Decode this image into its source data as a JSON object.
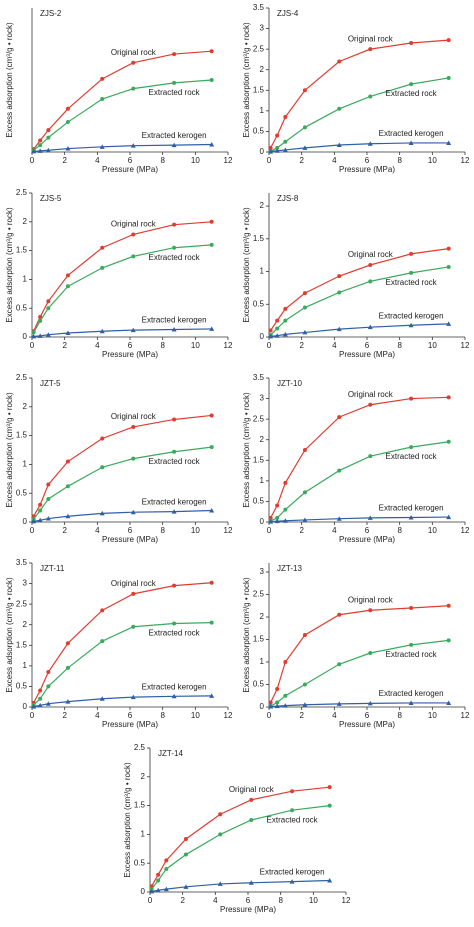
{
  "chart_data": [
    {
      "type": "line",
      "title": "ZJS-2",
      "xlabel": "Pressure (MPa)",
      "ylabel": "Excess adsorption (cm³/g • rock)",
      "x": [
        0.1,
        0.5,
        1,
        2.2,
        4.3,
        6.2,
        8.7,
        11
      ],
      "xlim": [
        0,
        12
      ],
      "xticks": [
        0,
        2,
        4,
        6,
        8,
        10,
        12
      ],
      "ylim": [
        0,
        2.5
      ],
      "yticks": [],
      "series": [
        {
          "name": "Original rock",
          "color": "#e03c31",
          "values": [
            0.05,
            0.2,
            0.38,
            0.75,
            1.27,
            1.55,
            1.7,
            1.75
          ]
        },
        {
          "name": "Extracted rock",
          "color": "#3aaa5c",
          "values": [
            0.03,
            0.12,
            0.25,
            0.52,
            0.92,
            1.1,
            1.2,
            1.25
          ]
        },
        {
          "name": "Extracted kerogen",
          "color": "#2f5fa8",
          "values": [
            0.01,
            0.02,
            0.03,
            0.06,
            0.09,
            0.11,
            0.12,
            0.13
          ]
        }
      ]
    },
    {
      "type": "line",
      "title": "ZJS-4",
      "xlabel": "Pressure (MPa)",
      "ylabel": "Excess adsorption (cm³/g • rock)",
      "x": [
        0.1,
        0.5,
        1,
        2.2,
        4.3,
        6.2,
        8.7,
        11
      ],
      "xlim": [
        0,
        12
      ],
      "xticks": [
        0,
        2,
        4,
        6,
        8,
        10,
        12
      ],
      "ylim": [
        0,
        3.5
      ],
      "yticks": [
        0,
        0.5,
        1.0,
        1.5,
        2.0,
        2.5,
        3.0,
        3.5
      ],
      "series": [
        {
          "name": "Original rock",
          "color": "#e03c31",
          "values": [
            0.1,
            0.4,
            0.85,
            1.5,
            2.2,
            2.5,
            2.65,
            2.72
          ]
        },
        {
          "name": "Extracted rock",
          "color": "#3aaa5c",
          "values": [
            0.02,
            0.1,
            0.25,
            0.6,
            1.05,
            1.35,
            1.65,
            1.8
          ]
        },
        {
          "name": "Extracted kerogen",
          "color": "#2f5fa8",
          "values": [
            0.01,
            0.03,
            0.05,
            0.1,
            0.17,
            0.2,
            0.22,
            0.22
          ]
        }
      ]
    },
    {
      "type": "line",
      "title": "ZJS-5",
      "xlabel": "Pressure (MPa)",
      "ylabel": "Excess adsorption (cm³/g • rock)",
      "x": [
        0.1,
        0.5,
        1,
        2.2,
        4.3,
        6.2,
        8.7,
        11
      ],
      "xlim": [
        0,
        12
      ],
      "xticks": [
        0,
        2,
        4,
        6,
        8,
        10,
        12
      ],
      "ylim": [
        0,
        2.5
      ],
      "yticks": [
        0,
        0.5,
        1.0,
        1.5,
        2.0,
        2.5
      ],
      "series": [
        {
          "name": "Original rock",
          "color": "#e03c31",
          "values": [
            0.1,
            0.35,
            0.62,
            1.07,
            1.55,
            1.78,
            1.95,
            2.0
          ]
        },
        {
          "name": "Extracted rock",
          "color": "#3aaa5c",
          "values": [
            0.08,
            0.28,
            0.5,
            0.88,
            1.2,
            1.4,
            1.55,
            1.6
          ]
        },
        {
          "name": "Extracted kerogen",
          "color": "#2f5fa8",
          "values": [
            0.01,
            0.02,
            0.04,
            0.07,
            0.1,
            0.12,
            0.13,
            0.14
          ]
        }
      ]
    },
    {
      "type": "line",
      "title": "ZJS-8",
      "xlabel": "Pressure (MPa)",
      "ylabel": "Excess adsorption (cm³/g • rock)",
      "x": [
        0.1,
        0.5,
        1,
        2.2,
        4.3,
        6.2,
        8.7,
        11
      ],
      "xlim": [
        0,
        12
      ],
      "xticks": [
        0,
        2,
        4,
        6,
        8,
        10,
        12
      ],
      "ylim": [
        0,
        2.2
      ],
      "yticks": [
        0,
        0.5,
        1.0,
        1.5,
        2.0
      ],
      "series": [
        {
          "name": "Original rock",
          "color": "#e03c31",
          "values": [
            0.1,
            0.25,
            0.43,
            0.67,
            0.93,
            1.1,
            1.27,
            1.35
          ]
        },
        {
          "name": "Extracted rock",
          "color": "#3aaa5c",
          "values": [
            0.03,
            0.13,
            0.25,
            0.45,
            0.68,
            0.85,
            0.98,
            1.07
          ]
        },
        {
          "name": "Extracted kerogen",
          "color": "#2f5fa8",
          "values": [
            0.01,
            0.02,
            0.04,
            0.07,
            0.12,
            0.15,
            0.18,
            0.2
          ]
        }
      ]
    },
    {
      "type": "line",
      "title": "JZT-5",
      "xlabel": "Pressure (MPa)",
      "ylabel": "Excess adsorption (cm³/g • rock)",
      "x": [
        0.1,
        0.5,
        1,
        2.2,
        4.3,
        6.2,
        8.7,
        11
      ],
      "xlim": [
        0,
        12
      ],
      "xticks": [
        0,
        2,
        4,
        6,
        8,
        10,
        12
      ],
      "ylim": [
        0,
        2.5
      ],
      "yticks": [
        0,
        0.5,
        1.0,
        1.5,
        2.0,
        2.5
      ],
      "series": [
        {
          "name": "Original rock",
          "color": "#e03c31",
          "values": [
            0.1,
            0.3,
            0.65,
            1.05,
            1.45,
            1.65,
            1.78,
            1.85
          ]
        },
        {
          "name": "Extracted rock",
          "color": "#3aaa5c",
          "values": [
            0.05,
            0.2,
            0.4,
            0.62,
            0.95,
            1.1,
            1.22,
            1.3
          ]
        },
        {
          "name": "Extracted kerogen",
          "color": "#2f5fa8",
          "values": [
            0.01,
            0.03,
            0.06,
            0.1,
            0.15,
            0.17,
            0.18,
            0.2
          ]
        }
      ]
    },
    {
      "type": "line",
      "title": "JZT-10",
      "xlabel": "Pressure (MPa)",
      "ylabel": "Excess adsorption (cm³/g • rock)",
      "x": [
        0.1,
        0.5,
        1,
        2.2,
        4.3,
        6.2,
        8.7,
        11
      ],
      "xlim": [
        0,
        12
      ],
      "xticks": [
        0,
        2,
        4,
        6,
        8,
        10,
        12
      ],
      "ylim": [
        0,
        3.5
      ],
      "yticks": [
        0,
        0.5,
        1.0,
        1.5,
        2.0,
        2.5,
        3.0,
        3.5
      ],
      "series": [
        {
          "name": "Original rock",
          "color": "#e03c31",
          "values": [
            0.1,
            0.4,
            0.95,
            1.75,
            2.55,
            2.85,
            3.0,
            3.03
          ]
        },
        {
          "name": "Extracted rock",
          "color": "#3aaa5c",
          "values": [
            0.03,
            0.1,
            0.3,
            0.72,
            1.25,
            1.6,
            1.82,
            1.95
          ]
        },
        {
          "name": "Extracted kerogen",
          "color": "#2f5fa8",
          "values": [
            0.01,
            0.02,
            0.03,
            0.05,
            0.08,
            0.1,
            0.11,
            0.12
          ]
        }
      ]
    },
    {
      "type": "line",
      "title": "JZT-11",
      "xlabel": "Pressure (MPa)",
      "ylabel": "Excess adsorption (cm³/g • rock)",
      "x": [
        0.1,
        0.5,
        1,
        2.2,
        4.3,
        6.2,
        8.7,
        11
      ],
      "xlim": [
        0,
        12
      ],
      "xticks": [
        0,
        2,
        4,
        6,
        8,
        10,
        12
      ],
      "ylim": [
        0,
        3.5
      ],
      "yticks": [
        0,
        0.5,
        1.0,
        1.5,
        2.0,
        2.5,
        3.0,
        3.5
      ],
      "series": [
        {
          "name": "Original rock",
          "color": "#e03c31",
          "values": [
            0.1,
            0.4,
            0.85,
            1.55,
            2.35,
            2.75,
            2.95,
            3.02
          ]
        },
        {
          "name": "Extracted rock",
          "color": "#3aaa5c",
          "values": [
            0.05,
            0.2,
            0.5,
            0.95,
            1.6,
            1.95,
            2.03,
            2.05
          ]
        },
        {
          "name": "Extracted kerogen",
          "color": "#2f5fa8",
          "values": [
            0.01,
            0.04,
            0.08,
            0.13,
            0.2,
            0.24,
            0.26,
            0.27
          ]
        }
      ]
    },
    {
      "type": "line",
      "title": "JZT-13",
      "xlabel": "Pressure (MPa)",
      "ylabel": "Excess adsorption (cm³/g • rock)",
      "x": [
        0.1,
        0.5,
        1,
        2.2,
        4.3,
        6.2,
        8.7,
        11
      ],
      "xlim": [
        0,
        12
      ],
      "xticks": [
        0,
        2,
        4,
        6,
        8,
        10,
        12
      ],
      "ylim": [
        0,
        3.2
      ],
      "yticks": [
        0,
        0.5,
        1.0,
        1.5,
        2.0,
        2.5,
        3.0
      ],
      "series": [
        {
          "name": "Original rock",
          "color": "#e03c31",
          "values": [
            0.1,
            0.4,
            1.0,
            1.6,
            2.05,
            2.15,
            2.2,
            2.25
          ]
        },
        {
          "name": "Extracted rock",
          "color": "#3aaa5c",
          "values": [
            0.02,
            0.1,
            0.25,
            0.5,
            0.95,
            1.2,
            1.38,
            1.48
          ]
        },
        {
          "name": "Extracted kerogen",
          "color": "#2f5fa8",
          "values": [
            0.01,
            0.02,
            0.03,
            0.05,
            0.07,
            0.08,
            0.09,
            0.09
          ]
        }
      ]
    },
    {
      "type": "line",
      "title": "JZT-14",
      "xlabel": "Pressure (MPa)",
      "ylabel": "Excess adsorption (cm³/g • rock)",
      "x": [
        0.1,
        0.5,
        1,
        2.2,
        4.3,
        6.2,
        8.7,
        11
      ],
      "xlim": [
        0,
        12
      ],
      "xticks": [
        0,
        2,
        4,
        6,
        8,
        10,
        12
      ],
      "ylim": [
        0,
        2.5
      ],
      "yticks": [
        0,
        0.5,
        1.0,
        1.5,
        2.0,
        2.5
      ],
      "series": [
        {
          "name": "Original rock",
          "color": "#e03c31",
          "values": [
            0.1,
            0.3,
            0.55,
            0.92,
            1.35,
            1.6,
            1.75,
            1.82
          ]
        },
        {
          "name": "Extracted rock",
          "color": "#3aaa5c",
          "values": [
            0.05,
            0.2,
            0.4,
            0.65,
            1.0,
            1.25,
            1.42,
            1.5
          ]
        },
        {
          "name": "Extracted kerogen",
          "color": "#2f5fa8",
          "values": [
            0.01,
            0.03,
            0.05,
            0.09,
            0.14,
            0.16,
            0.18,
            0.2
          ]
        }
      ]
    }
  ]
}
